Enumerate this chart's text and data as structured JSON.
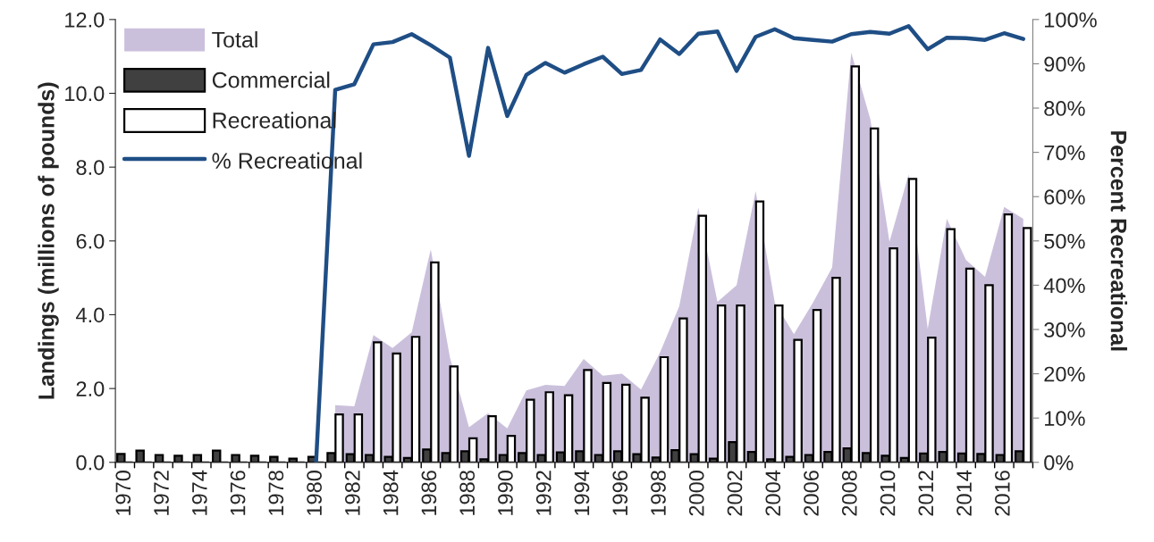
{
  "chart_data": {
    "type": "bar",
    "ylabel": "Landings (millions of pounds)",
    "y2label": "Percent Recreational",
    "categories": [
      "1970",
      null,
      "1972",
      null,
      "1974",
      null,
      "1976",
      null,
      "1978",
      null,
      "1980",
      null,
      "1982",
      null,
      "1984",
      null,
      "1986",
      null,
      "1988",
      null,
      "1990",
      null,
      "1992",
      null,
      "1994",
      null,
      "1996",
      null,
      "1998",
      null,
      "2000",
      null,
      "2002",
      null,
      "2004",
      null,
      "2006",
      null,
      "2008",
      null,
      "2010",
      null,
      "2012",
      null,
      "2014",
      null,
      "2016",
      null
    ],
    "series": [
      {
        "name": "Total",
        "type": "area",
        "color": "#cbc0dc",
        "values": [
          null,
          null,
          null,
          null,
          null,
          null,
          null,
          null,
          null,
          null,
          null,
          1.55,
          1.52,
          3.45,
          3.1,
          3.52,
          5.77,
          2.85,
          0.95,
          1.33,
          0.92,
          1.95,
          2.1,
          2.07,
          2.8,
          2.35,
          2.4,
          1.97,
          2.98,
          4.23,
          6.9,
          4.35,
          4.8,
          7.35,
          4.33,
          3.47,
          4.33,
          5.28,
          11.1,
          9.3,
          5.98,
          7.8,
          3.62,
          6.6,
          5.49,
          5.03,
          6.92,
          6.6
        ]
      },
      {
        "name": "Commercial",
        "color": "#404040",
        "values": [
          0.23,
          0.32,
          0.2,
          0.18,
          0.2,
          0.32,
          0.2,
          0.18,
          0.15,
          0.1,
          0.15,
          0.25,
          0.22,
          0.2,
          0.15,
          0.12,
          0.35,
          0.25,
          0.3,
          0.08,
          0.2,
          0.25,
          0.2,
          0.27,
          0.3,
          0.2,
          0.3,
          0.22,
          0.13,
          0.33,
          0.22,
          0.1,
          0.55,
          0.28,
          0.08,
          0.15,
          0.2,
          0.28,
          0.38,
          0.25,
          0.18,
          0.12,
          0.24,
          0.28,
          0.24,
          0.23,
          0.2,
          0.3
        ]
      },
      {
        "name": "Recreational",
        "color": "#ffffff",
        "values": [
          null,
          null,
          null,
          null,
          null,
          null,
          null,
          null,
          null,
          null,
          null,
          1.3,
          1.3,
          3.25,
          2.95,
          3.4,
          5.42,
          2.6,
          0.65,
          1.25,
          0.72,
          1.7,
          1.9,
          1.82,
          2.5,
          2.15,
          2.1,
          1.75,
          2.85,
          3.9,
          6.68,
          4.25,
          4.25,
          7.07,
          4.25,
          3.32,
          4.13,
          5.0,
          10.73,
          9.05,
          5.8,
          7.68,
          3.38,
          6.32,
          5.25,
          4.8,
          6.72,
          6.35
        ]
      },
      {
        "name": "% Recreational",
        "type": "line",
        "axis": "y2",
        "color": "#1f4e85",
        "values": [
          null,
          null,
          null,
          null,
          null,
          null,
          null,
          null,
          null,
          null,
          0,
          84.1,
          85.4,
          94.4,
          94.9,
          96.7,
          94.2,
          91.4,
          69.2,
          93.6,
          78.2,
          87.5,
          90.2,
          88.0,
          89.9,
          91.6,
          87.7,
          88.6,
          95.5,
          92.2,
          96.8,
          97.3,
          88.4,
          96.1,
          97.8,
          95.8,
          95.4,
          95.0,
          96.7,
          97.2,
          96.8,
          98.5,
          93.3,
          95.9,
          95.8,
          95.4,
          96.9,
          95.6
        ]
      }
    ],
    "ylim": [
      0,
      12
    ],
    "yticks": [
      {
        "value": 0,
        "label": "0.0"
      },
      {
        "value": 2,
        "label": "2.0"
      },
      {
        "value": 4,
        "label": "4.0"
      },
      {
        "value": 6,
        "label": "6.0"
      },
      {
        "value": 8,
        "label": "8.0"
      },
      {
        "value": 10,
        "label": "10.0"
      },
      {
        "value": 12,
        "label": "12.0"
      }
    ],
    "y2lim": [
      0,
      100
    ],
    "y2ticks": [
      {
        "value": 0,
        "label": "0%"
      },
      {
        "value": 10,
        "label": "10%"
      },
      {
        "value": 20,
        "label": "20%"
      },
      {
        "value": 30,
        "label": "30%"
      },
      {
        "value": 40,
        "label": "40%"
      },
      {
        "value": 50,
        "label": "50%"
      },
      {
        "value": 60,
        "label": "60%"
      },
      {
        "value": 70,
        "label": "70%"
      },
      {
        "value": 80,
        "label": "80%"
      },
      {
        "value": 90,
        "label": "90%"
      },
      {
        "value": 100,
        "label": "100%"
      }
    ],
    "grid": false,
    "legend": "top left",
    "marker": "none",
    "line_style": "solid"
  }
}
